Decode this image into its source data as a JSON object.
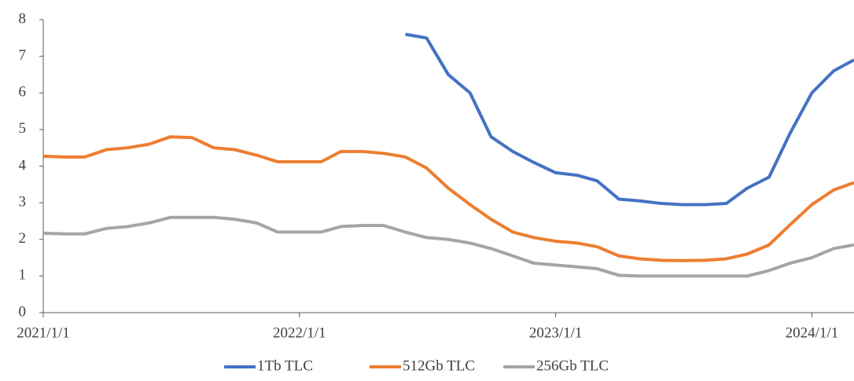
{
  "chart_data": {
    "type": "line",
    "x": [
      "2021/1/1",
      "2021/2/1",
      "2021/3/1",
      "2021/4/1",
      "2021/5/1",
      "2021/6/1",
      "2021/7/1",
      "2021/8/1",
      "2021/9/1",
      "2021/10/1",
      "2021/11/1",
      "2021/12/1",
      "2022/1/1",
      "2022/2/1",
      "2022/3/1",
      "2022/4/1",
      "2022/5/1",
      "2022/6/1",
      "2022/7/1",
      "2022/8/1",
      "2022/9/1",
      "2022/10/1",
      "2022/11/1",
      "2022/12/1",
      "2023/1/1",
      "2023/2/1",
      "2023/3/1",
      "2023/4/1",
      "2023/5/1",
      "2023/6/1",
      "2023/7/1",
      "2023/8/1",
      "2023/9/1",
      "2023/10/1",
      "2023/11/1",
      "2023/12/1",
      "2024/1/1",
      "2024/2/1",
      "2024/3/1"
    ],
    "series": [
      {
        "name": "1Tb TLC",
        "color": "#4472c4",
        "values": [
          null,
          null,
          null,
          null,
          null,
          null,
          null,
          null,
          null,
          null,
          null,
          null,
          null,
          null,
          null,
          null,
          null,
          7.6,
          7.5,
          6.5,
          6.0,
          4.8,
          4.4,
          4.1,
          3.82,
          3.75,
          3.6,
          3.1,
          3.05,
          2.98,
          2.95,
          2.95,
          2.98,
          3.4,
          3.7,
          4.9,
          6.0,
          6.6,
          6.9
        ]
      },
      {
        "name": "512Gb TLC",
        "color": "#ed7d31",
        "values": [
          4.27,
          4.25,
          4.25,
          4.45,
          4.5,
          4.6,
          4.8,
          4.78,
          4.5,
          4.45,
          4.3,
          4.12,
          4.12,
          4.12,
          4.4,
          4.4,
          4.35,
          4.25,
          3.95,
          3.4,
          2.95,
          2.55,
          2.2,
          2.05,
          1.95,
          1.9,
          1.8,
          1.55,
          1.47,
          1.43,
          1.42,
          1.43,
          1.47,
          1.6,
          1.85,
          2.4,
          2.95,
          3.35,
          3.55
        ]
      },
      {
        "name": "256Gb TLC",
        "color": "#a5a5a5",
        "values": [
          2.17,
          2.15,
          2.15,
          2.3,
          2.35,
          2.45,
          2.6,
          2.6,
          2.6,
          2.55,
          2.45,
          2.2,
          2.2,
          2.2,
          2.35,
          2.38,
          2.38,
          2.2,
          2.05,
          2.0,
          1.9,
          1.75,
          1.55,
          1.35,
          1.3,
          1.25,
          1.2,
          1.02,
          1.0,
          1.0,
          1.0,
          1.0,
          1.0,
          1.0,
          1.15,
          1.35,
          1.5,
          1.75,
          1.85
        ]
      }
    ],
    "xlim": [
      "2021/1/1",
      "2024/3/1"
    ],
    "xticks": [
      "2021/1/1",
      "2022/1/1",
      "2023/1/1",
      "2024/1/1"
    ],
    "ylim": [
      0,
      8
    ],
    "yticks": [
      0,
      1,
      2,
      3,
      4,
      5,
      6,
      7,
      8
    ],
    "legend": "bottom",
    "grid": false
  }
}
